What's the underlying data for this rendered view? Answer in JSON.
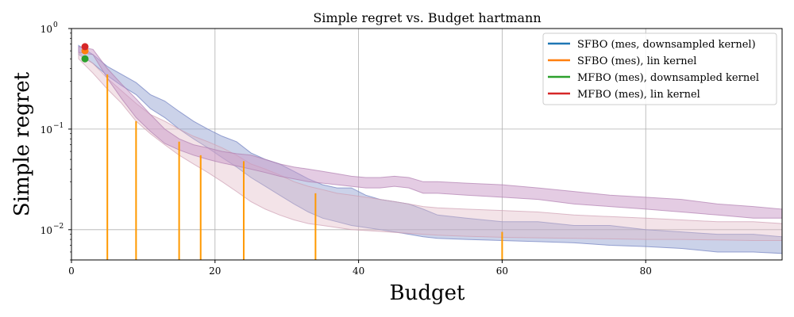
{
  "chart_data": {
    "type": "line",
    "title": "Simple regret vs. Budget hartmann",
    "xlabel": "Budget",
    "ylabel": "Simple regret",
    "xlim": [
      0,
      99
    ],
    "ylim": [
      0.005,
      1.0
    ],
    "yscale": "log",
    "grid": true,
    "legend_position": "top-right",
    "x_ticks": [
      0,
      20,
      40,
      60,
      80
    ],
    "x_tick_labels": [
      "0",
      "20",
      "40",
      "60",
      "80"
    ],
    "y_ticks": [
      0.01,
      0.1,
      1.0
    ],
    "y_tick_labels": [
      "10",
      "10",
      "10"
    ],
    "y_tick_exponents": [
      "−2",
      "−1",
      "0"
    ],
    "legend": [
      {
        "name": "SFBO (mes, downsampled kernel)",
        "color": "#1f77b4"
      },
      {
        "name": "SFBO (mes), lin kernel",
        "color": "#ff7f0e"
      },
      {
        "name": "MFBO (mes), downsampled kernel",
        "color": "#2ca02c"
      },
      {
        "name": "MFBO (mes), lin kernel",
        "color": "#d62728"
      }
    ],
    "bands": [
      {
        "id": "blue",
        "fill": "#8c9ccf",
        "opacity": 0.45,
        "edge": "#6f7fc0",
        "x": [
          1,
          3,
          5,
          7,
          9,
          11,
          13,
          15,
          17,
          19,
          21,
          23,
          25,
          27,
          29,
          31,
          33,
          35,
          37,
          39,
          41,
          43,
          45,
          47,
          49,
          51,
          55,
          60,
          65,
          70,
          75,
          80,
          85,
          90,
          95,
          99
        ],
        "upper": [
          0.68,
          0.55,
          0.42,
          0.35,
          0.29,
          0.22,
          0.19,
          0.15,
          0.12,
          0.1,
          0.085,
          0.075,
          0.058,
          0.05,
          0.045,
          0.038,
          0.032,
          0.028,
          0.026,
          0.026,
          0.022,
          0.02,
          0.019,
          0.018,
          0.016,
          0.014,
          0.013,
          0.012,
          0.012,
          0.011,
          0.011,
          0.01,
          0.0095,
          0.009,
          0.009,
          0.0085
        ],
        "lower": [
          0.55,
          0.45,
          0.34,
          0.27,
          0.22,
          0.16,
          0.13,
          0.1,
          0.08,
          0.065,
          0.052,
          0.042,
          0.033,
          0.027,
          0.022,
          0.018,
          0.015,
          0.013,
          0.012,
          0.011,
          0.0105,
          0.01,
          0.0095,
          0.009,
          0.0085,
          0.0082,
          0.008,
          0.0078,
          0.0076,
          0.0074,
          0.007,
          0.0068,
          0.0065,
          0.006,
          0.006,
          0.0058
        ]
      },
      {
        "id": "pink",
        "fill": "#e2b8c6",
        "opacity": 0.4,
        "edge": "#cf9fb3",
        "x": [
          1,
          3,
          5,
          7,
          9,
          11,
          13,
          15,
          17,
          19,
          21,
          23,
          25,
          27,
          29,
          31,
          33,
          35,
          37,
          39,
          41,
          43,
          45,
          47,
          49,
          51,
          55,
          60,
          65,
          70,
          75,
          80,
          85,
          90,
          95,
          99
        ],
        "upper": [
          0.58,
          0.45,
          0.32,
          0.24,
          0.18,
          0.14,
          0.12,
          0.1,
          0.085,
          0.075,
          0.065,
          0.055,
          0.045,
          0.04,
          0.035,
          0.03,
          0.027,
          0.025,
          0.023,
          0.022,
          0.021,
          0.02,
          0.019,
          0.018,
          0.017,
          0.0165,
          0.016,
          0.0155,
          0.015,
          0.014,
          0.0135,
          0.013,
          0.0125,
          0.012,
          0.012,
          0.0115
        ],
        "lower": [
          0.5,
          0.36,
          0.25,
          0.18,
          0.12,
          0.09,
          0.07,
          0.055,
          0.045,
          0.037,
          0.03,
          0.024,
          0.019,
          0.016,
          0.014,
          0.0125,
          0.0115,
          0.011,
          0.0105,
          0.01,
          0.0098,
          0.0096,
          0.0094,
          0.0092,
          0.009,
          0.0088,
          0.0086,
          0.0084,
          0.0083,
          0.0082,
          0.0081,
          0.008,
          0.008,
          0.0079,
          0.0078,
          0.0078
        ]
      },
      {
        "id": "purple",
        "fill": "#c99ac8",
        "opacity": 0.5,
        "edge": "#b07fb0",
        "x": [
          1,
          3,
          5,
          7,
          9,
          11,
          13,
          15,
          17,
          19,
          21,
          23,
          25,
          27,
          29,
          31,
          33,
          35,
          37,
          39,
          41,
          43,
          45,
          47,
          49,
          51,
          55,
          60,
          65,
          70,
          75,
          80,
          85,
          90,
          95,
          99
        ],
        "upper": [
          0.66,
          0.62,
          0.4,
          0.28,
          0.2,
          0.14,
          0.1,
          0.08,
          0.07,
          0.065,
          0.06,
          0.057,
          0.055,
          0.05,
          0.045,
          0.042,
          0.04,
          0.038,
          0.036,
          0.034,
          0.033,
          0.033,
          0.034,
          0.033,
          0.03,
          0.03,
          0.029,
          0.028,
          0.026,
          0.024,
          0.022,
          0.021,
          0.02,
          0.018,
          0.017,
          0.016
        ],
        "lower": [
          0.58,
          0.55,
          0.32,
          0.2,
          0.13,
          0.095,
          0.072,
          0.062,
          0.055,
          0.05,
          0.046,
          0.043,
          0.04,
          0.037,
          0.034,
          0.032,
          0.03,
          0.029,
          0.028,
          0.027,
          0.026,
          0.026,
          0.027,
          0.026,
          0.023,
          0.023,
          0.022,
          0.021,
          0.02,
          0.018,
          0.017,
          0.016,
          0.015,
          0.014,
          0.013,
          0.013
        ]
      }
    ],
    "orange_stems": {
      "color": "#ff9900",
      "x": [
        5,
        9,
        15,
        18,
        24,
        34,
        60
      ],
      "top": [
        0.35,
        0.12,
        0.075,
        0.055,
        0.048,
        0.023,
        0.0095
      ]
    },
    "start_points": [
      {
        "x": 1,
        "y": 0.5,
        "color": "#2ca02c"
      },
      {
        "x": 1,
        "y": 0.6,
        "color": "#ff7f0e"
      },
      {
        "x": 1,
        "y": 0.66,
        "color": "#d62728"
      }
    ]
  }
}
